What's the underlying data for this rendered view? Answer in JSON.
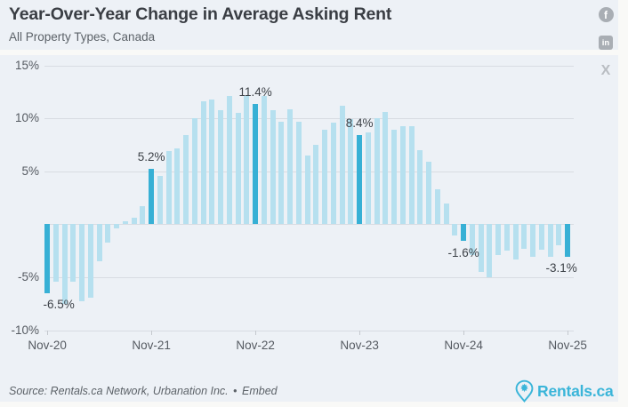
{
  "header": {
    "title": "Year-Over-Year Change in Average Asking Rent",
    "subtitle": "All Property Types, Canada"
  },
  "social": {
    "facebook_glyph": "f",
    "linkedin_glyph": "in",
    "x_glyph": "X"
  },
  "chart_data": {
    "type": "bar",
    "title": "Year-Over-Year Change in Average Asking Rent",
    "subtitle": "All Property Types, Canada",
    "unit": "%",
    "grid": true,
    "legend": false,
    "ylim": [
      -10,
      15
    ],
    "yticks": [
      15,
      10,
      5,
      0,
      -5,
      -10
    ],
    "ytick_labels": [
      "15%",
      "10%",
      "5%",
      "",
      "-5%",
      "-10%"
    ],
    "x": [
      "Nov-20",
      "Dec-20",
      "Jan-21",
      "Feb-21",
      "Mar-21",
      "Apr-21",
      "May-21",
      "Jun-21",
      "Jul-21",
      "Aug-21",
      "Sep-21",
      "Oct-21",
      "Nov-21",
      "Dec-21",
      "Jan-22",
      "Feb-22",
      "Mar-22",
      "Apr-22",
      "May-22",
      "Jun-22",
      "Jul-22",
      "Aug-22",
      "Sep-22",
      "Oct-22",
      "Nov-22",
      "Dec-22",
      "Jan-23",
      "Feb-23",
      "Mar-23",
      "Apr-23",
      "May-23",
      "Jun-23",
      "Jul-23",
      "Aug-23",
      "Sep-23",
      "Oct-23",
      "Nov-23",
      "Dec-23",
      "Jan-24",
      "Feb-24",
      "Mar-24",
      "Apr-24",
      "May-24",
      "Jun-24",
      "Jul-24",
      "Aug-24",
      "Sep-24",
      "Oct-24",
      "Nov-24",
      "Dec-24",
      "Jan-25",
      "Feb-25",
      "Mar-25",
      "Apr-25",
      "May-25",
      "Jun-25",
      "Jul-25",
      "Aug-25",
      "Sep-25",
      "Oct-25",
      "Nov-25"
    ],
    "values": [
      -6.5,
      -5.4,
      -7.5,
      -5.4,
      -7.3,
      -6.9,
      -3.5,
      -1.7,
      -0.4,
      0.3,
      0.6,
      1.7,
      5.2,
      4.6,
      6.9,
      7.2,
      8.4,
      10.0,
      11.6,
      11.8,
      10.8,
      12.1,
      10.5,
      12.1,
      11.4,
      12.1,
      10.8,
      9.7,
      10.9,
      9.7,
      6.5,
      7.5,
      8.9,
      9.6,
      11.2,
      9.9,
      8.4,
      8.7,
      10.0,
      10.6,
      8.9,
      9.3,
      9.3,
      7.0,
      5.9,
      3.3,
      2.0,
      -1.1,
      -1.6,
      -2.9,
      -4.5,
      -5.0,
      -2.9,
      -2.5,
      -3.3,
      -2.3,
      -3.1,
      -2.4,
      -3.1,
      -2.0,
      -3.1
    ],
    "xtick_indices": [
      0,
      12,
      24,
      36,
      48,
      60
    ],
    "xtick_labels": [
      "Nov-20",
      "Nov-21",
      "Nov-22",
      "Nov-23",
      "Nov-24",
      "Nov-25"
    ],
    "highlight_indices": [
      0,
      12,
      24,
      36,
      48,
      60
    ],
    "annotations": [
      {
        "index": 0,
        "text": "-6.5%",
        "side": "below",
        "dx": 13
      },
      {
        "index": 12,
        "text": "5.2%",
        "side": "above",
        "dx": 0
      },
      {
        "index": 24,
        "text": "11.4%",
        "side": "above",
        "dx": 0
      },
      {
        "index": 36,
        "text": "8.4%",
        "side": "above",
        "dx": 0
      },
      {
        "index": 48,
        "text": "-1.6%",
        "side": "below",
        "dx": 0
      },
      {
        "index": 60,
        "text": "-3.1%",
        "side": "below",
        "dx": -7
      }
    ],
    "colors": {
      "bar": "#b6e0ef",
      "highlight": "#37b0d5"
    }
  },
  "footer": {
    "source": "Source: Rentals.ca Network, Urbanation Inc.",
    "separator": "•",
    "embed_label": "Embed",
    "logo_text": "Rentals.ca"
  }
}
